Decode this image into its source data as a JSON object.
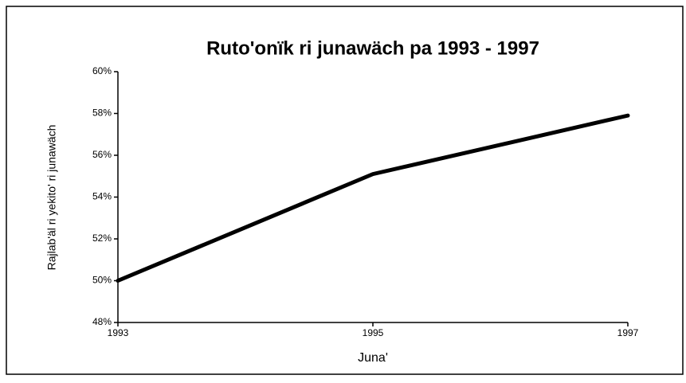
{
  "chart_data": {
    "type": "line",
    "title": "Ruto'onïk ri junawäch pa  1993 - 1997",
    "x_label": "Juna'",
    "y_label": "Rajlab'äl ri yekito' ri junawäch",
    "x": [
      1993,
      1995,
      1997
    ],
    "values": [
      50,
      55.1,
      57.9
    ],
    "color": "#000000",
    "xlim": [
      1993,
      1997
    ],
    "xticks": [
      1993,
      1995,
      1997
    ],
    "ylim": [
      48,
      60
    ],
    "yticks": [
      {
        "value": 48,
        "label": "48%"
      },
      {
        "value": 50,
        "label": "50%"
      },
      {
        "value": 52,
        "label": "52%"
      },
      {
        "value": 54,
        "label": "54%"
      },
      {
        "value": 56,
        "label": "56%"
      },
      {
        "value": 58,
        "label": "58%"
      },
      {
        "value": 60,
        "label": "60%"
      }
    ],
    "grid": false
  }
}
